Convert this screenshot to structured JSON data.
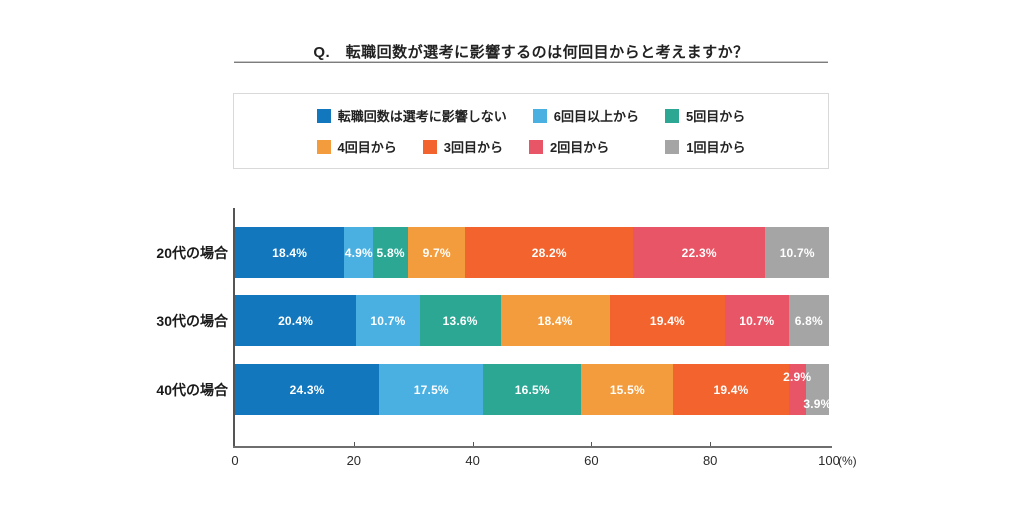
{
  "chart_data": {
    "type": "bar",
    "stacked": true,
    "orientation": "horizontal",
    "title": "Q.　転職回数が選考に影響するのは何回目からと考えますか？",
    "categories": [
      "20代の場合",
      "30代の場合",
      "40代の場合"
    ],
    "series": [
      {
        "name": "転職回数は選考に影響しない",
        "color": "#1377bd",
        "values": [
          18.4,
          20.4,
          24.3
        ]
      },
      {
        "name": "6回目以上から",
        "color": "#4ab0e2",
        "values": [
          4.9,
          10.7,
          17.5
        ]
      },
      {
        "name": "5回目から",
        "color": "#2ba794",
        "values": [
          5.8,
          13.6,
          16.5
        ]
      },
      {
        "name": "4回目から",
        "color": "#f39c3d",
        "values": [
          9.7,
          18.4,
          15.5
        ]
      },
      {
        "name": "3回目から",
        "color": "#f2632e",
        "values": [
          28.2,
          19.4,
          19.4
        ]
      },
      {
        "name": "2回目から",
        "color": "#e85566",
        "values": [
          22.3,
          10.7,
          2.9
        ]
      },
      {
        "name": "1回目から",
        "color": "#a5a5a5",
        "values": [
          10.7,
          6.8,
          3.9
        ]
      }
    ],
    "value_suffix": "%",
    "x_axis": {
      "range": [
        0,
        100
      ],
      "ticks": [
        0,
        20,
        40,
        60,
        80,
        100
      ],
      "unit_label": "(%)"
    },
    "legend_position": "top-box",
    "legend_rows": [
      [
        0,
        1,
        2
      ],
      [
        3,
        4,
        5,
        6
      ]
    ],
    "grid": false
  }
}
